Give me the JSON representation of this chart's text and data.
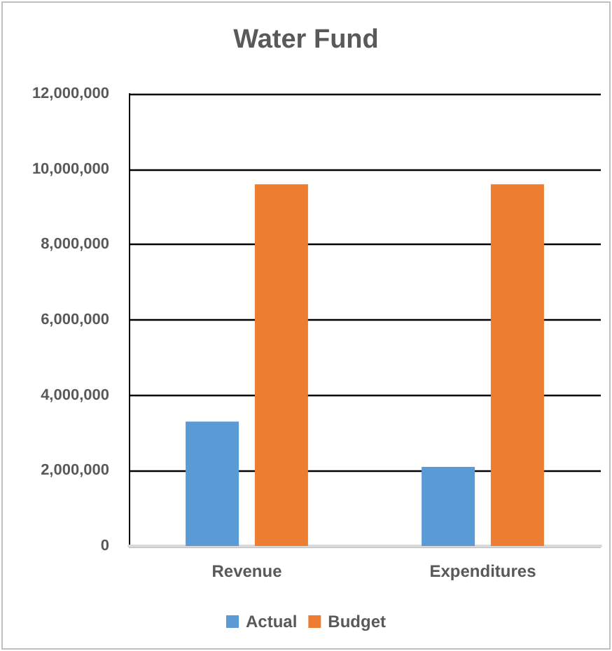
{
  "chart_data": {
    "type": "bar",
    "title": "Water Fund",
    "categories": [
      "Revenue",
      "Expenditures"
    ],
    "series": [
      {
        "name": "Actual",
        "color": "#5b9bd5",
        "values": [
          3300000,
          2100000
        ]
      },
      {
        "name": "Budget",
        "color": "#ed7d31",
        "values": [
          9600000,
          9600000
        ]
      }
    ],
    "ylim": [
      0,
      12000000
    ],
    "yticks": [
      {
        "value": 0,
        "label": "0"
      },
      {
        "value": 2000000,
        "label": "2,000,000"
      },
      {
        "value": 4000000,
        "label": "4,000,000"
      },
      {
        "value": 6000000,
        "label": "6,000,000"
      },
      {
        "value": 8000000,
        "label": "8,000,000"
      },
      {
        "value": 10000000,
        "label": "10,000,000"
      },
      {
        "value": 12000000,
        "label": "12,000,000"
      }
    ],
    "grid": true,
    "legend": "bottom"
  }
}
